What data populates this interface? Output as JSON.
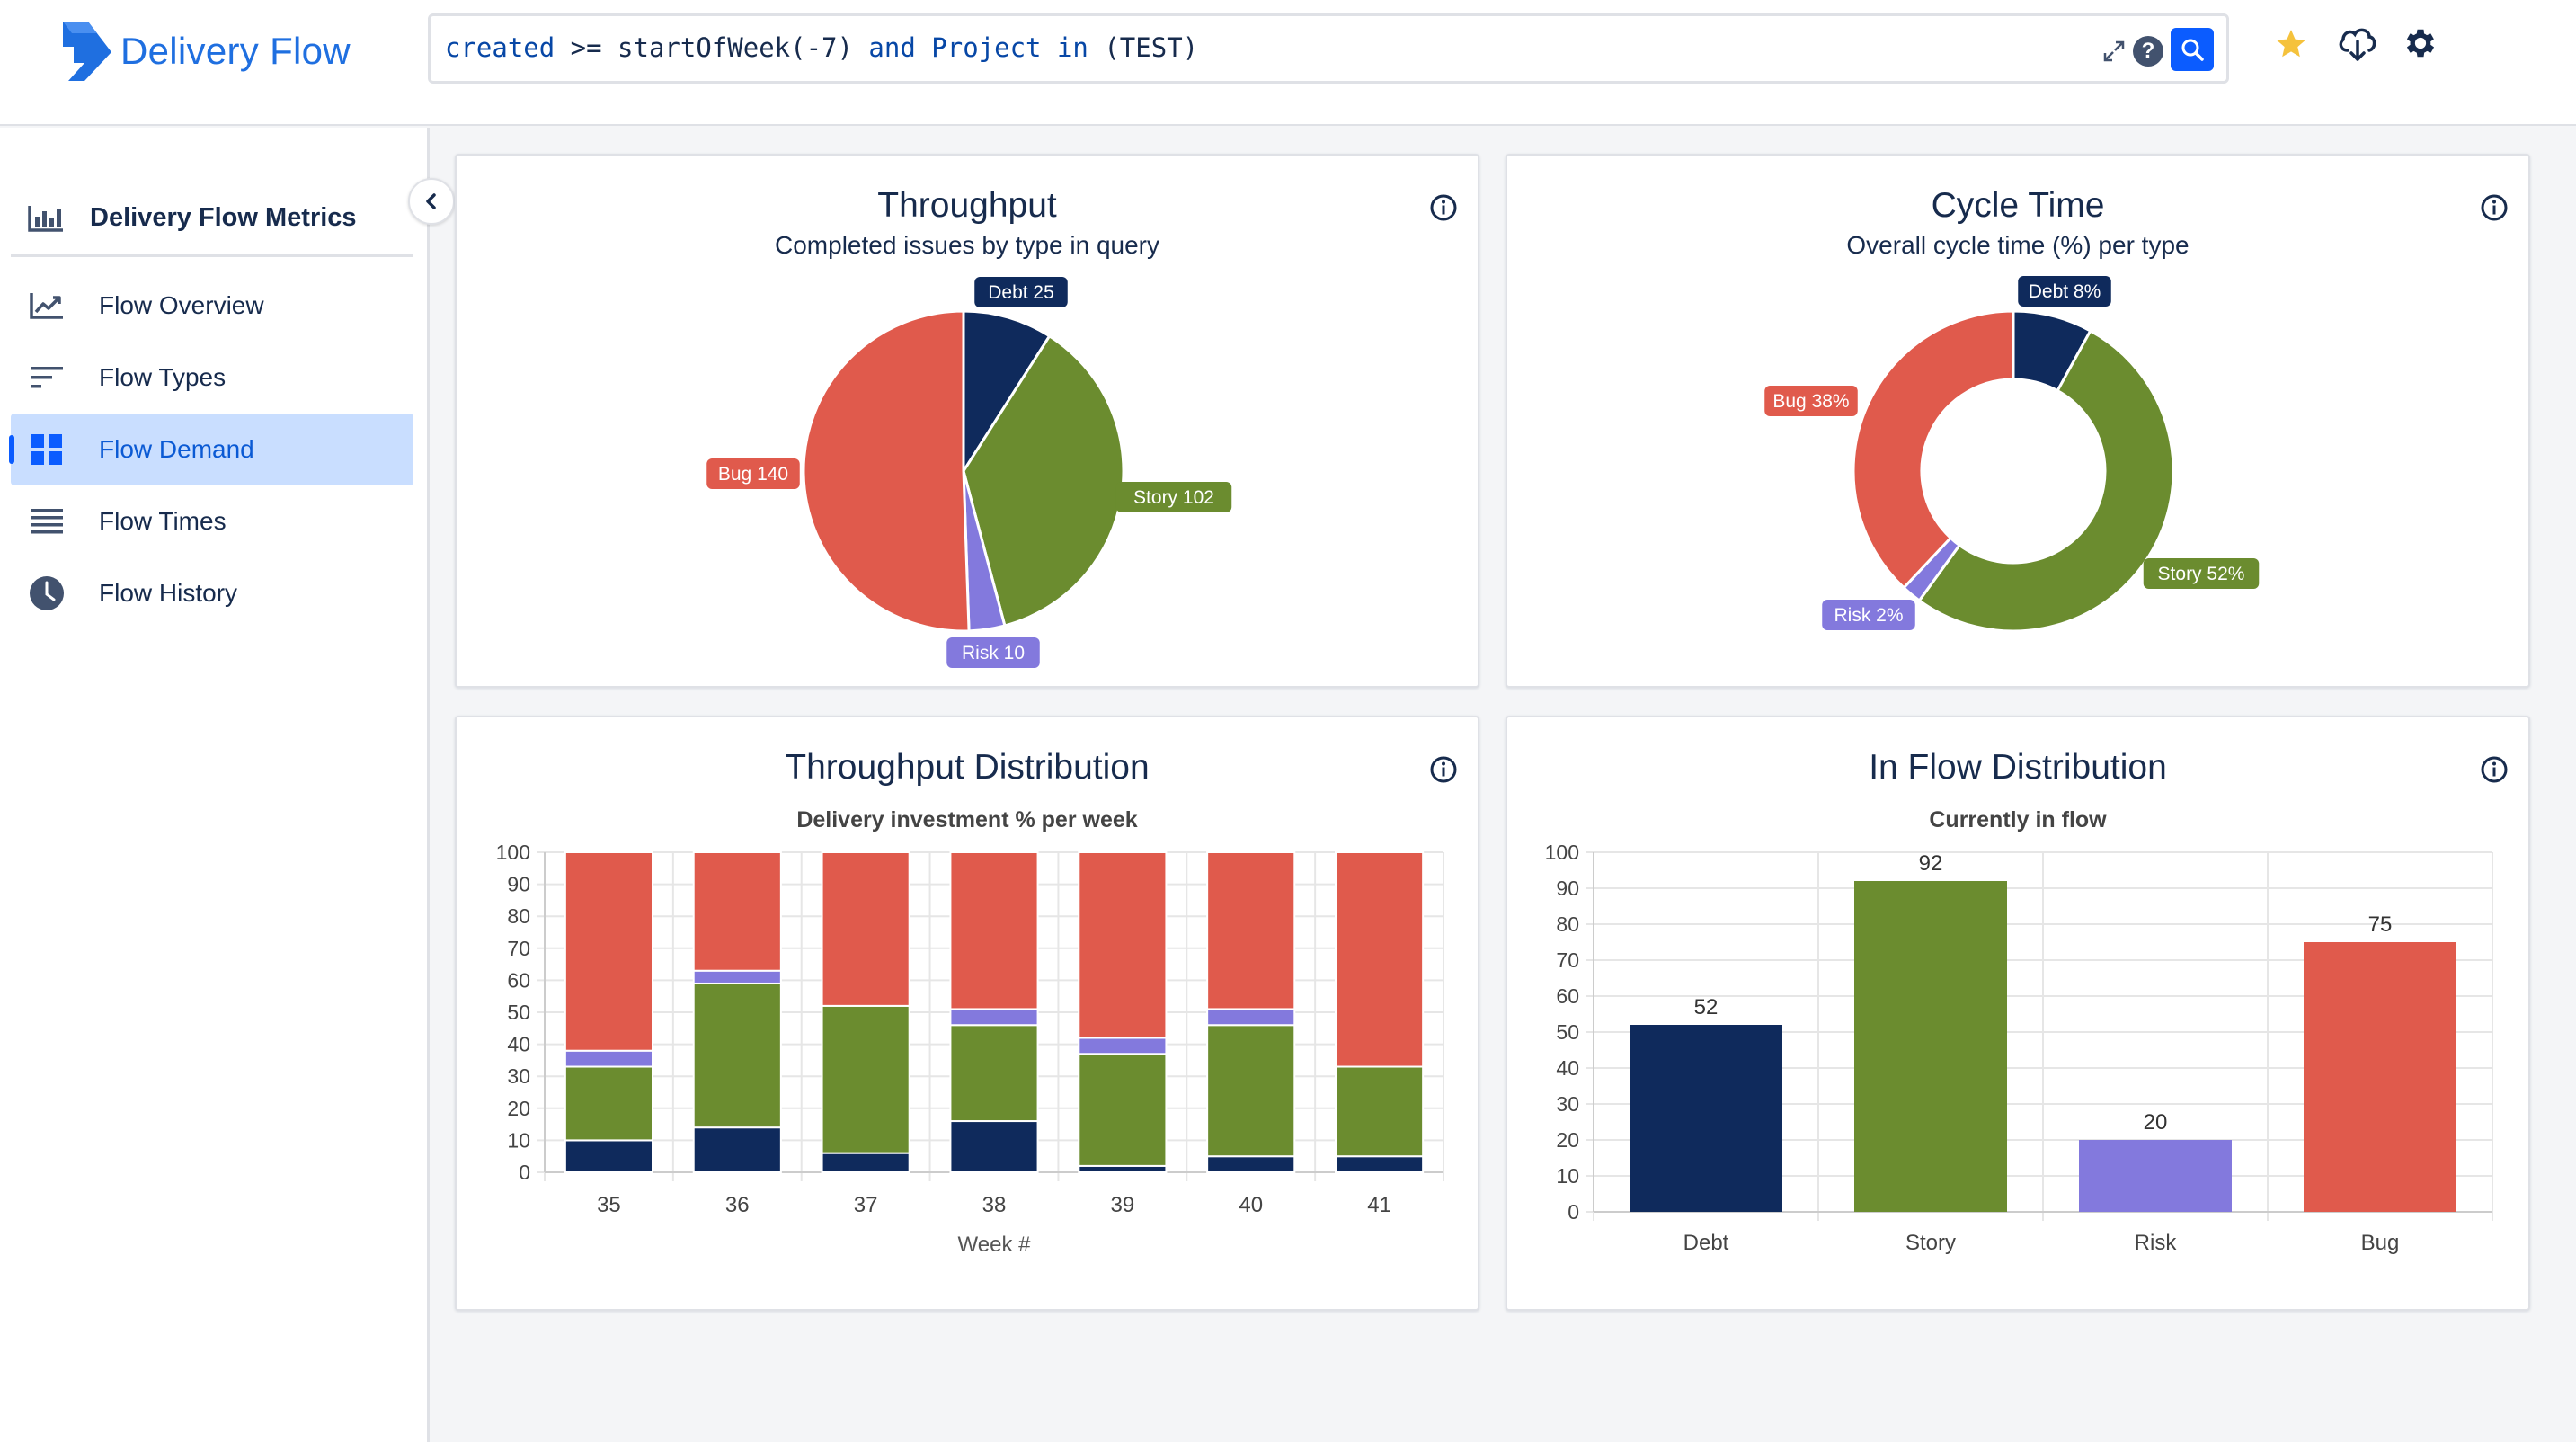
{
  "app": {
    "title": "Delivery Flow"
  },
  "search": {
    "query": "created >= startOfWeek(-7) and Project in (TEST)",
    "tokens": [
      {
        "text": "created",
        "kind": "kw"
      },
      {
        "text": " >= startOfWeek(-7) ",
        "kind": "plain"
      },
      {
        "text": "and",
        "kind": "kw"
      },
      {
        "text": " ",
        "kind": "plain"
      },
      {
        "text": "Project",
        "kind": "kw"
      },
      {
        "text": " ",
        "kind": "plain"
      },
      {
        "text": "in",
        "kind": "kw"
      },
      {
        "text": " (TEST)",
        "kind": "plain"
      }
    ],
    "help_label": "?"
  },
  "sidebar": {
    "header": "Delivery Flow Metrics",
    "items": [
      {
        "label": "Flow Overview",
        "icon": "trend-chart-icon",
        "active": false
      },
      {
        "label": "Flow Types",
        "icon": "sort-lines-icon",
        "active": false
      },
      {
        "label": "Flow Demand",
        "icon": "dashboard-grid-icon",
        "active": true
      },
      {
        "label": "Flow Times",
        "icon": "list-lines-icon",
        "active": false
      },
      {
        "label": "Flow History",
        "icon": "clock-icon",
        "active": false
      }
    ]
  },
  "colors": {
    "debt": "#0f2a5c",
    "story": "#6b8c2f",
    "risk": "#8379dd",
    "bug": "#e05a4c",
    "accent": "#0b5cff"
  },
  "cards": {
    "throughput": {
      "title": "Throughput",
      "subtitle": "Completed issues by type in query"
    },
    "cycle_time": {
      "title": "Cycle Time",
      "subtitle": "Overall cycle time (%) per type"
    },
    "throughput_dist": {
      "title": "Throughput Distribution",
      "subtitle": "Delivery investment % per week"
    },
    "in_flow_dist": {
      "title": "In Flow Distribution",
      "subtitle": "Currently in flow"
    }
  },
  "chart_data": [
    {
      "type": "pie",
      "title": "Throughput",
      "subtitle": "Completed issues by type in query",
      "slices": [
        {
          "label": "Debt",
          "value": 25,
          "text": "Debt 25"
        },
        {
          "label": "Story",
          "value": 102,
          "text": "Story 102"
        },
        {
          "label": "Risk",
          "value": 10,
          "text": "Risk 10"
        },
        {
          "label": "Bug",
          "value": 140,
          "text": "Bug 140"
        }
      ]
    },
    {
      "type": "pie",
      "donut": true,
      "title": "Cycle Time",
      "subtitle": "Overall cycle time (%) per type",
      "slices": [
        {
          "label": "Debt",
          "value": 8,
          "text": "Debt 8%"
        },
        {
          "label": "Story",
          "value": 52,
          "text": "Story 52%"
        },
        {
          "label": "Risk",
          "value": 2,
          "text": "Risk 2%"
        },
        {
          "label": "Bug",
          "value": 38,
          "text": "Bug 38%"
        }
      ]
    },
    {
      "type": "bar",
      "stacked": true,
      "title": "Throughput Distribution",
      "subtitle": "Delivery investment % per week",
      "xlabel": "Week #",
      "ylabel": "",
      "ylim": [
        0,
        100
      ],
      "yticks": [
        0,
        10,
        20,
        30,
        40,
        50,
        60,
        70,
        80,
        90,
        100
      ],
      "categories": [
        "35",
        "36",
        "37",
        "38",
        "39",
        "40",
        "41"
      ],
      "series": [
        {
          "name": "Debt",
          "values": [
            10,
            14,
            6,
            16,
            2,
            5,
            5
          ]
        },
        {
          "name": "Story",
          "values": [
            23,
            45,
            46,
            30,
            35,
            41,
            28
          ]
        },
        {
          "name": "Risk",
          "values": [
            5,
            4,
            0,
            5,
            5,
            5,
            0
          ]
        },
        {
          "name": "Bug",
          "values": [
            62,
            37,
            48,
            49,
            58,
            49,
            67
          ]
        }
      ]
    },
    {
      "type": "bar",
      "title": "In Flow Distribution",
      "subtitle": "Currently in flow",
      "xlabel": "",
      "ylabel": "",
      "ylim": [
        0,
        100
      ],
      "yticks": [
        0,
        10,
        20,
        30,
        40,
        50,
        60,
        70,
        80,
        90,
        100
      ],
      "categories": [
        "Debt",
        "Story",
        "Risk",
        "Bug"
      ],
      "values": [
        52,
        92,
        20,
        75
      ],
      "data_labels": [
        "52",
        "92",
        "20",
        "75"
      ]
    }
  ]
}
